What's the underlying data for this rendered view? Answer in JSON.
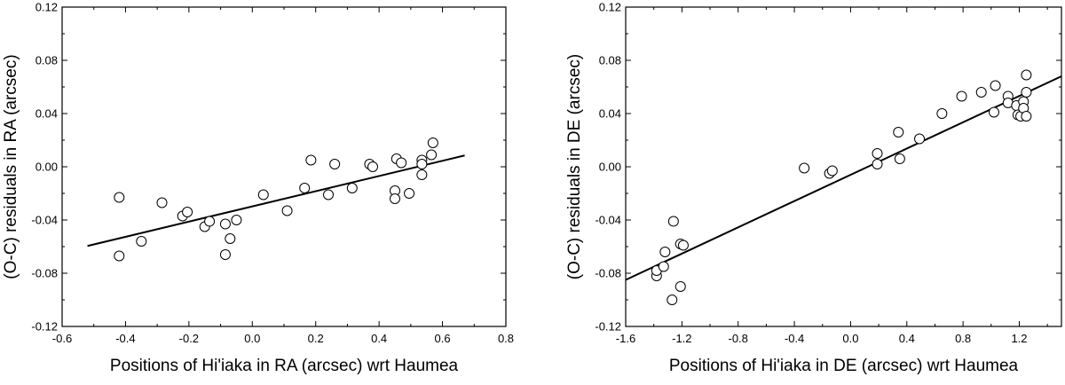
{
  "chart_data": [
    {
      "type": "scatter",
      "title": "",
      "xlabel": "Positions of Hi'iaka in RA (arcsec) wrt Haumea",
      "ylabel": "(O-C) residuals in RA (arcsec)",
      "xlim": [
        -0.6,
        0.8
      ],
      "ylim": [
        -0.12,
        0.12
      ],
      "xticks": [
        -0.6,
        -0.4,
        -0.2,
        0.0,
        0.2,
        0.4,
        0.6,
        0.8
      ],
      "xtick_labels": [
        "-0.6",
        "-0.4",
        "-0.2",
        "0.0",
        "0.2",
        "0.4",
        "0.6",
        "0.8"
      ],
      "yticks": [
        -0.12,
        -0.08,
        -0.04,
        0.0,
        0.04,
        0.08,
        0.12
      ],
      "ytick_labels": [
        "-0.12",
        "-0.08",
        "-0.04",
        "0.00",
        "0.04",
        "0.08",
        "0.12"
      ],
      "grid": false,
      "points": [
        {
          "x": -0.42,
          "y": -0.023
        },
        {
          "x": -0.42,
          "y": -0.067
        },
        {
          "x": -0.35,
          "y": -0.056
        },
        {
          "x": -0.285,
          "y": -0.027
        },
        {
          "x": -0.22,
          "y": -0.037
        },
        {
          "x": -0.205,
          "y": -0.034
        },
        {
          "x": -0.15,
          "y": -0.045
        },
        {
          "x": -0.135,
          "y": -0.041
        },
        {
          "x": -0.085,
          "y": -0.043
        },
        {
          "x": -0.085,
          "y": -0.066
        },
        {
          "x": -0.07,
          "y": -0.054
        },
        {
          "x": -0.05,
          "y": -0.04
        },
        {
          "x": 0.035,
          "y": -0.021
        },
        {
          "x": 0.11,
          "y": -0.033
        },
        {
          "x": 0.165,
          "y": -0.016
        },
        {
          "x": 0.185,
          "y": 0.005
        },
        {
          "x": 0.24,
          "y": -0.021
        },
        {
          "x": 0.26,
          "y": 0.002
        },
        {
          "x": 0.315,
          "y": -0.016
        },
        {
          "x": 0.37,
          "y": 0.002
        },
        {
          "x": 0.38,
          "y": 0.0
        },
        {
          "x": 0.45,
          "y": -0.018
        },
        {
          "x": 0.45,
          "y": -0.024
        },
        {
          "x": 0.455,
          "y": 0.006
        },
        {
          "x": 0.47,
          "y": 0.003
        },
        {
          "x": 0.495,
          "y": -0.02
        },
        {
          "x": 0.535,
          "y": 0.005
        },
        {
          "x": 0.535,
          "y": 0.002
        },
        {
          "x": 0.535,
          "y": -0.006
        },
        {
          "x": 0.565,
          "y": 0.009
        },
        {
          "x": 0.57,
          "y": 0.018
        }
      ],
      "fit_line": {
        "x": [
          -0.52,
          0.67
        ],
        "y": [
          -0.0595,
          0.0085
        ]
      }
    },
    {
      "type": "scatter",
      "title": "",
      "xlabel": "Positions of Hi'iaka in DE (arcsec) wrt Haumea",
      "ylabel": "(O-C) residuals in DE (arcsec)",
      "xlim": [
        -1.6,
        1.5
      ],
      "ylim": [
        -0.12,
        0.12
      ],
      "xticks": [
        -1.6,
        -1.2,
        -0.8,
        -0.4,
        0.0,
        0.4,
        0.8,
        1.2
      ],
      "xtick_labels": [
        "-1.6",
        "-1.2",
        "-0.8",
        "-0.4",
        "0.0",
        "0.4",
        "0.8",
        "1.2"
      ],
      "yticks": [
        -0.12,
        -0.08,
        -0.04,
        0.0,
        0.04,
        0.08,
        0.12
      ],
      "ytick_labels": [
        "-0.12",
        "-0.08",
        "-0.04",
        "0.00",
        "0.04",
        "0.08",
        "0.12"
      ],
      "grid": false,
      "points": [
        {
          "x": -1.38,
          "y": -0.082
        },
        {
          "x": -1.38,
          "y": -0.078
        },
        {
          "x": -1.33,
          "y": -0.075
        },
        {
          "x": -1.32,
          "y": -0.064
        },
        {
          "x": -1.27,
          "y": -0.1
        },
        {
          "x": -1.26,
          "y": -0.041
        },
        {
          "x": -1.21,
          "y": -0.058
        },
        {
          "x": -1.19,
          "y": -0.059
        },
        {
          "x": -1.21,
          "y": -0.09
        },
        {
          "x": -0.33,
          "y": -0.001
        },
        {
          "x": -0.15,
          "y": -0.005
        },
        {
          "x": -0.13,
          "y": -0.003
        },
        {
          "x": 0.19,
          "y": 0.002
        },
        {
          "x": 0.19,
          "y": 0.01
        },
        {
          "x": 0.34,
          "y": 0.026
        },
        {
          "x": 0.35,
          "y": 0.006
        },
        {
          "x": 0.49,
          "y": 0.021
        },
        {
          "x": 0.65,
          "y": 0.04
        },
        {
          "x": 0.79,
          "y": 0.053
        },
        {
          "x": 0.93,
          "y": 0.056
        },
        {
          "x": 1.02,
          "y": 0.041
        },
        {
          "x": 1.03,
          "y": 0.061
        },
        {
          "x": 1.12,
          "y": 0.053
        },
        {
          "x": 1.12,
          "y": 0.048
        },
        {
          "x": 1.18,
          "y": 0.046
        },
        {
          "x": 1.19,
          "y": 0.039
        },
        {
          "x": 1.21,
          "y": 0.038
        },
        {
          "x": 1.23,
          "y": 0.049
        },
        {
          "x": 1.23,
          "y": 0.044
        },
        {
          "x": 1.25,
          "y": 0.038
        },
        {
          "x": 1.25,
          "y": 0.056
        },
        {
          "x": 1.25,
          "y": 0.069
        }
      ],
      "fit_line": {
        "x": [
          -1.6,
          1.5
        ],
        "y": [
          -0.085,
          0.068
        ]
      }
    }
  ]
}
